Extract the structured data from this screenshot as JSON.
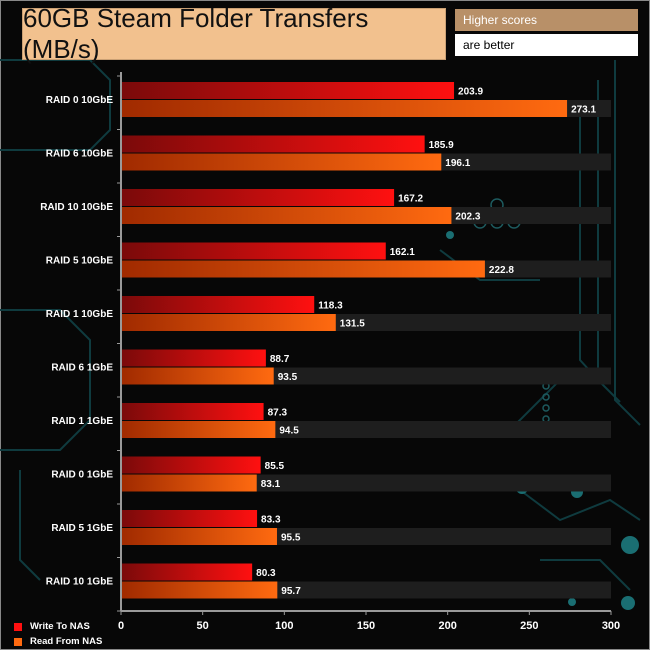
{
  "title": "60GB Steam Folder Transfers (MB/s)",
  "note": {
    "line1": "Higher scores",
    "line2": "are better"
  },
  "colors": {
    "write_dark": "#7a0a0a",
    "write_light": "#ff1010",
    "read_dark": "#a02a00",
    "read_light": "#ff6a10",
    "band": "#1e1e1e",
    "axis": "#9a9a9a",
    "text": "#ffffff"
  },
  "chart_data": {
    "type": "bar",
    "orientation": "horizontal",
    "categories": [
      "RAID 0 10GbE",
      "RAID 6 10GbE",
      "RAID 10 10GbE",
      "RAID 5 10GbE",
      "RAID 1 10GbE",
      "RAID 6 1GbE",
      "RAID 1 1GbE",
      "RAID 0 1GbE",
      "RAID 5 1GbE",
      "RAID 10 1GbE"
    ],
    "series": [
      {
        "name": "Write To NAS",
        "values": [
          203.9,
          185.9,
          167.2,
          162.1,
          118.3,
          88.7,
          87.3,
          85.5,
          83.3,
          80.3
        ]
      },
      {
        "name": "Read From NAS",
        "values": [
          273.1,
          196.1,
          202.3,
          222.8,
          131.5,
          93.5,
          94.5,
          83.1,
          95.5,
          95.7
        ]
      }
    ],
    "xlim": [
      0,
      300
    ],
    "xticks": [
      0,
      50,
      100,
      150,
      200,
      250,
      300
    ],
    "legend": "bottom-left",
    "grid": false
  }
}
